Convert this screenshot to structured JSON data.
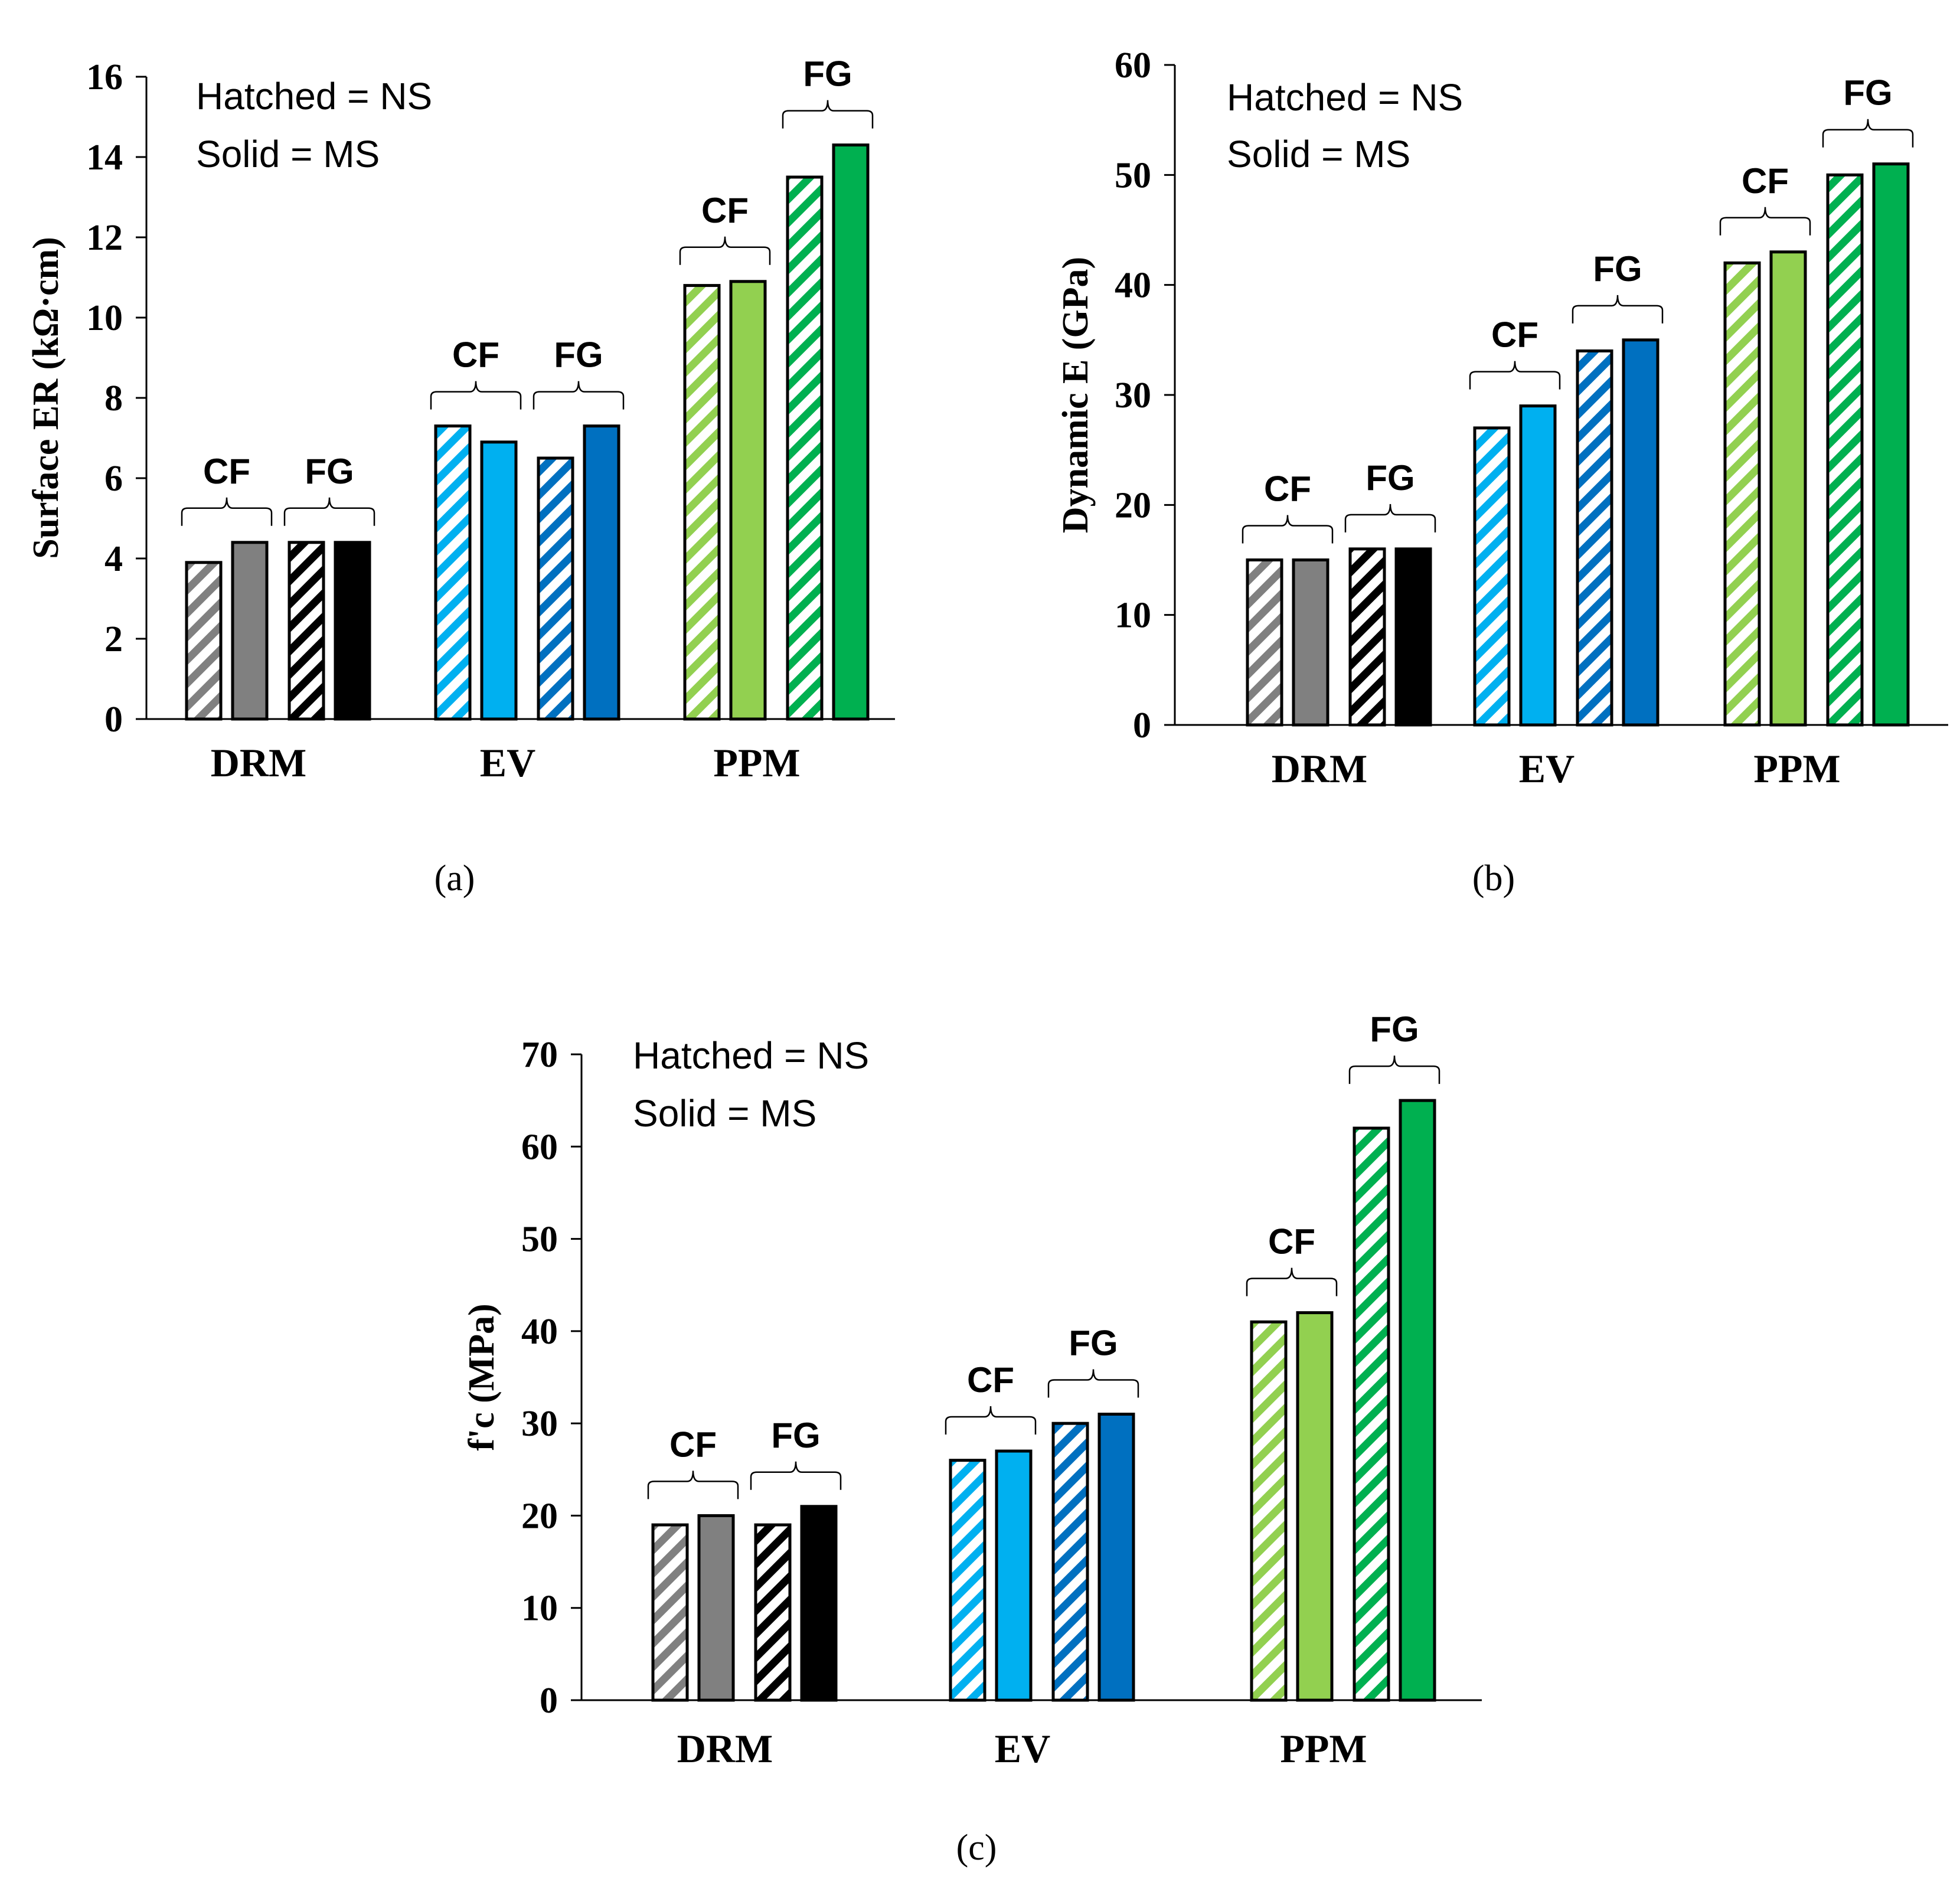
{
  "colors": {
    "DRM": {
      "CF": "#808080",
      "FG": "#000000"
    },
    "EV": {
      "CF": "#00b0f0",
      "FG": "#0070c0"
    },
    "PPM": {
      "CF": "#92d050",
      "FG": "#00b050"
    }
  },
  "chart_data": [
    {
      "type": "bar",
      "panel_label": "(a)",
      "ylabel": "Surface ER (kΩ·cm)",
      "ylim": [
        0,
        16
      ],
      "yticks": [
        0,
        2,
        4,
        6,
        8,
        10,
        12,
        14,
        16
      ],
      "categories": [
        "DRM",
        "EV",
        "PPM"
      ],
      "legend": [
        "Hatched = NS",
        "Solid = MS"
      ],
      "series": [
        {
          "name": "CF-NS",
          "group": "CF",
          "hatched": true,
          "values": [
            3.9,
            7.3,
            10.8
          ]
        },
        {
          "name": "CF-MS",
          "group": "CF",
          "hatched": false,
          "values": [
            4.4,
            6.9,
            10.9
          ]
        },
        {
          "name": "FG-NS",
          "group": "FG",
          "hatched": true,
          "values": [
            4.4,
            6.5,
            13.5
          ]
        },
        {
          "name": "FG-MS",
          "group": "FG",
          "hatched": false,
          "values": [
            4.4,
            7.3,
            14.3
          ]
        }
      ],
      "group_labels": [
        "CF",
        "FG"
      ]
    },
    {
      "type": "bar",
      "panel_label": "(b)",
      "ylabel": "Dynamic E (GPa)",
      "ylim": [
        0,
        60
      ],
      "yticks": [
        0,
        10,
        20,
        30,
        40,
        50,
        60
      ],
      "categories": [
        "DRM",
        "EV",
        "PPM"
      ],
      "legend": [
        "Hatched = NS",
        "Solid = MS"
      ],
      "series": [
        {
          "name": "CF-NS",
          "group": "CF",
          "hatched": true,
          "values": [
            15,
            27,
            42
          ]
        },
        {
          "name": "CF-MS",
          "group": "CF",
          "hatched": false,
          "values": [
            15,
            29,
            43
          ]
        },
        {
          "name": "FG-NS",
          "group": "FG",
          "hatched": true,
          "values": [
            16,
            34,
            50
          ]
        },
        {
          "name": "FG-MS",
          "group": "FG",
          "hatched": false,
          "values": [
            16,
            35,
            51
          ]
        }
      ],
      "group_labels": [
        "CF",
        "FG"
      ]
    },
    {
      "type": "bar",
      "panel_label": "(c)",
      "ylabel": "f'c (MPa)",
      "ylim": [
        0,
        70
      ],
      "yticks": [
        0,
        10,
        20,
        30,
        40,
        50,
        60,
        70
      ],
      "categories": [
        "DRM",
        "EV",
        "PPM"
      ],
      "legend": [
        "Hatched = NS",
        "Solid = MS"
      ],
      "series": [
        {
          "name": "CF-NS",
          "group": "CF",
          "hatched": true,
          "values": [
            19,
            26,
            41
          ]
        },
        {
          "name": "CF-MS",
          "group": "CF",
          "hatched": false,
          "values": [
            20,
            27,
            42
          ]
        },
        {
          "name": "FG-NS",
          "group": "FG",
          "hatched": true,
          "values": [
            19,
            30,
            62
          ]
        },
        {
          "name": "FG-MS",
          "group": "FG",
          "hatched": false,
          "values": [
            21,
            31,
            65
          ]
        }
      ],
      "group_labels": [
        "CF",
        "FG"
      ]
    }
  ]
}
